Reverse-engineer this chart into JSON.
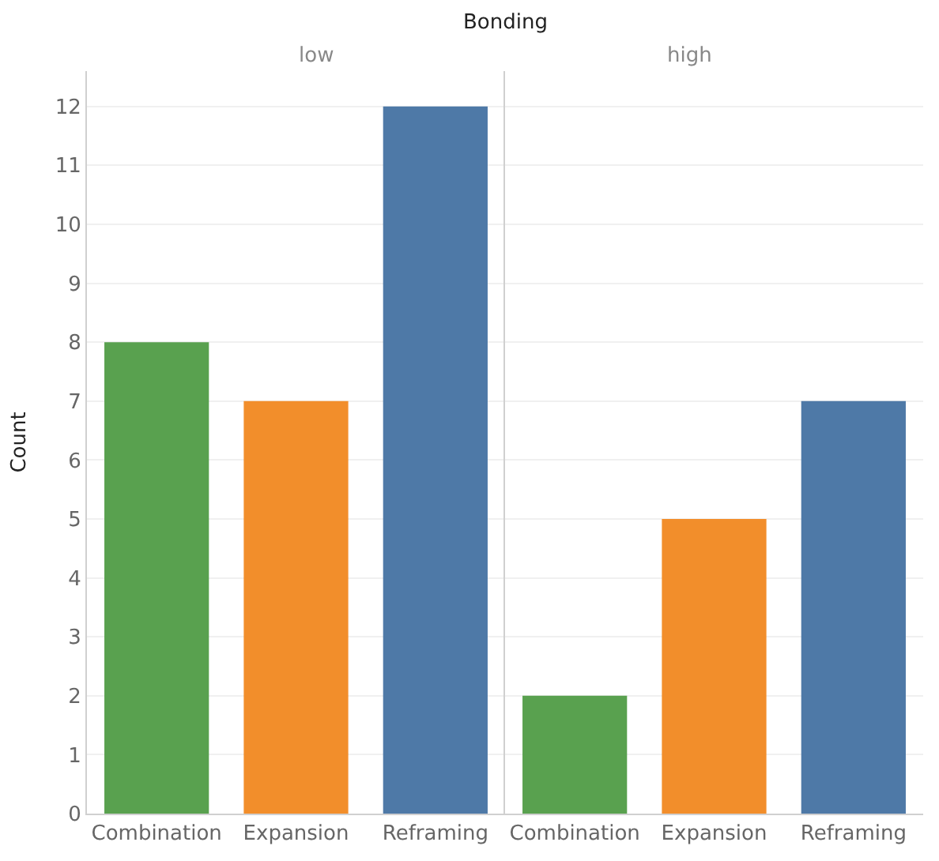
{
  "chart_data": [
    {
      "type": "bar",
      "title": "low",
      "annotations": [
        "Bonding"
      ],
      "ylabel": "Count",
      "categories": [
        "Combination",
        "Expansion",
        "Reframing"
      ],
      "values": [
        8,
        7,
        12
      ],
      "colors": [
        "#59a14f",
        "#f28e2b",
        "#4e79a7"
      ],
      "ylim": [
        0,
        12.6
      ],
      "yticks": [
        0,
        1,
        2,
        3,
        4,
        5,
        6,
        7,
        8,
        9,
        10,
        11,
        12
      ],
      "grid": "y"
    },
    {
      "type": "bar",
      "title": "high",
      "categories": [
        "Combination",
        "Expansion",
        "Reframing"
      ],
      "values": [
        2,
        5,
        7
      ],
      "colors": [
        "#59a14f",
        "#f28e2b",
        "#4e79a7"
      ],
      "ylim": [
        0,
        12.6
      ],
      "yticks": [
        0,
        1,
        2,
        3,
        4,
        5,
        6,
        7,
        8,
        9,
        10,
        11,
        12
      ],
      "grid": "y",
      "tick_labels": "x"
    }
  ]
}
